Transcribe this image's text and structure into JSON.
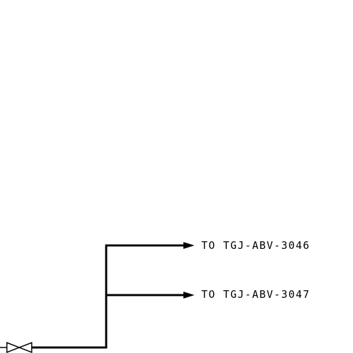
{
  "destinations": [
    {
      "label": "TO TGJ-ABV-3046"
    },
    {
      "label": "TO TGJ-ABV-3047"
    }
  ],
  "symbols": {
    "valve": "gate-valve-icon",
    "arrow": "arrowhead-icon"
  },
  "colors": {
    "line": "#000000",
    "background": "#ffffff"
  }
}
